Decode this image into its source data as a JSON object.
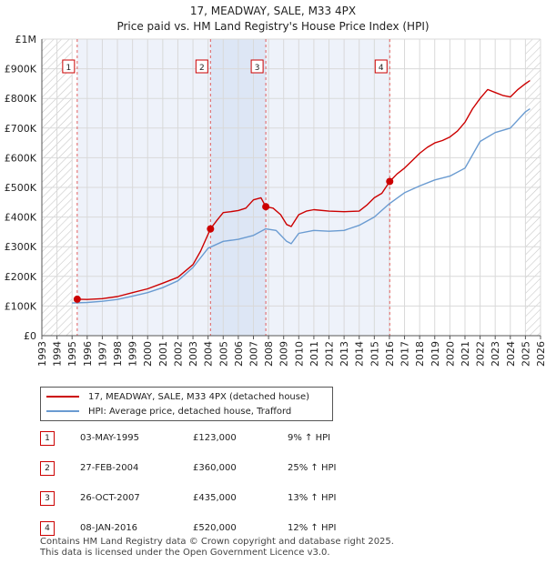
{
  "chart_data": {
    "type": "line",
    "title": "17, MEADWAY, SALE, M33 4PX",
    "subtitle": "Price paid vs. HM Land Registry's House Price Index (HPI)",
    "xlabel": "",
    "ylabel": "",
    "xlim": [
      1993,
      2026
    ],
    "ylim": [
      0,
      1000000
    ],
    "x_ticks": [
      "1993",
      "1994",
      "1995",
      "1996",
      "1997",
      "1998",
      "1999",
      "2000",
      "2001",
      "2002",
      "2003",
      "2004",
      "2005",
      "2006",
      "2007",
      "2008",
      "2009",
      "2010",
      "2011",
      "2012",
      "2013",
      "2014",
      "2015",
      "2016",
      "2017",
      "2018",
      "2019",
      "2020",
      "2021",
      "2022",
      "2023",
      "2024",
      "2025",
      "2026"
    ],
    "y_ticks": [
      "£0",
      "£100K",
      "£200K",
      "£300K",
      "£400K",
      "£500K",
      "£600K",
      "£700K",
      "£800K",
      "£900K",
      "£1M"
    ],
    "series": [
      {
        "name": "17, MEADWAY, SALE, M33 4PX (detached house)",
        "color": "#cc0000",
        "x": [
          1995.34,
          1996,
          1997,
          1998,
          1999,
          2000,
          2001,
          2002,
          2003,
          2003.5,
          2004.16,
          2004.6,
          2005,
          2005.5,
          2006,
          2006.5,
          2007,
          2007.5,
          2007.82,
          2008.3,
          2008.8,
          2009.2,
          2009.5,
          2010,
          2010.5,
          2011,
          2012,
          2013,
          2014,
          2014.5,
          2015,
          2015.5,
          2016.02,
          2016.5,
          2017,
          2017.5,
          2018,
          2018.5,
          2019,
          2019.5,
          2020,
          2020.5,
          2021,
          2021.5,
          2022,
          2022.5,
          2023,
          2023.5,
          2024,
          2024.5,
          2025,
          2025.3
        ],
        "values": [
          123000,
          122000,
          125000,
          132000,
          145000,
          158000,
          177000,
          197000,
          240000,
          285000,
          360000,
          390000,
          415000,
          418000,
          422000,
          430000,
          458000,
          465000,
          435000,
          430000,
          408000,
          375000,
          368000,
          408000,
          420000,
          425000,
          420000,
          418000,
          420000,
          440000,
          465000,
          480000,
          520000,
          545000,
          565000,
          590000,
          615000,
          635000,
          650000,
          658000,
          670000,
          690000,
          720000,
          765000,
          800000,
          830000,
          820000,
          810000,
          805000,
          830000,
          850000,
          860000
        ]
      },
      {
        "name": "HPI: Average price, detached house, Trafford",
        "color": "#6a9bd1",
        "x": [
          1995,
          1996,
          1997,
          1998,
          1999,
          2000,
          2001,
          2002,
          2003,
          2004,
          2005,
          2006,
          2007,
          2007.8,
          2008.5,
          2009.2,
          2009.5,
          2010,
          2011,
          2012,
          2013,
          2014,
          2015,
          2016,
          2017,
          2018,
          2019,
          2020,
          2021,
          2022,
          2023,
          2024,
          2025,
          2025.3
        ],
        "values": [
          110000,
          112000,
          116000,
          122000,
          133000,
          145000,
          162000,
          185000,
          230000,
          295000,
          318000,
          325000,
          338000,
          360000,
          355000,
          318000,
          310000,
          345000,
          355000,
          352000,
          355000,
          372000,
          400000,
          445000,
          482000,
          505000,
          525000,
          538000,
          565000,
          655000,
          685000,
          700000,
          755000,
          765000
        ]
      }
    ],
    "sales": [
      {
        "id": "1",
        "date": "03-MAY-1995",
        "x": 1995.34,
        "price": "£123,000",
        "value": 123000,
        "hpi": "9% ↑ HPI"
      },
      {
        "id": "2",
        "date": "27-FEB-2004",
        "x": 2004.16,
        "price": "£360,000",
        "value": 360000,
        "hpi": "25% ↑ HPI"
      },
      {
        "id": "3",
        "date": "26-OCT-2007",
        "x": 2007.82,
        "price": "£435,000",
        "value": 435000,
        "hpi": "13% ↑ HPI"
      },
      {
        "id": "4",
        "date": "08-JAN-2016",
        "x": 2016.02,
        "price": "£520,000",
        "value": 520000,
        "hpi": "12% ↑ HPI"
      }
    ],
    "hatch_before": 1995.0,
    "hatch_after": 2025.0,
    "shade_regions": [
      [
        2004.16,
        2007.82
      ]
    ]
  },
  "legend": {
    "property": "17, MEADWAY, SALE, M33 4PX (detached house)",
    "hpi": "HPI: Average price, detached house, Trafford"
  },
  "footer": {
    "line1": "Contains HM Land Registry data © Crown copyright and database right 2025.",
    "line2": "This data is licensed under the Open Government Licence v3.0."
  }
}
